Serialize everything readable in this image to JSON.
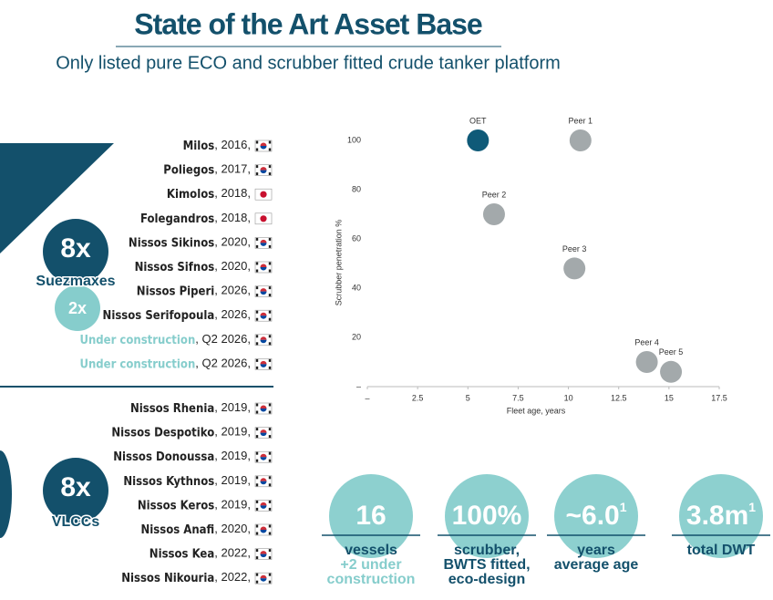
{
  "header": {
    "title": "State of the Art Asset Base",
    "subtitle": "Only listed pure ECO and scrubber fitted crude tanker platform"
  },
  "fleet": [
    {
      "count": "8x",
      "label": "Suezmaxes",
      "extra": "2x",
      "vessels": [
        {
          "name": "Milos",
          "detail": ", 2016,",
          "flag": "kr"
        },
        {
          "name": "Poliegos",
          "detail": ", 2017,",
          "flag": "kr"
        },
        {
          "name": "Kimolos",
          "detail": ", 2018,",
          "flag": "jp"
        },
        {
          "name": "Folegandros",
          "detail": ", 2018,",
          "flag": "jp"
        },
        {
          "name": "Nissos Sikinos",
          "detail": ", 2020,",
          "flag": "kr"
        },
        {
          "name": "Nissos Sifnos",
          "detail": ", 2020,",
          "flag": "kr"
        },
        {
          "name": "Nissos Piperi",
          "detail": ", 2026,",
          "flag": "kr"
        },
        {
          "name": "Nissos Serifopoula",
          "detail": ", 2026,",
          "flag": "kr"
        },
        {
          "name": "Under construction",
          "detail": ", Q2 2026,",
          "flag": "kr",
          "pending": true
        },
        {
          "name": "Under construction",
          "detail": ", Q2 2026,",
          "flag": "kr",
          "pending": true
        }
      ]
    },
    {
      "count": "8x",
      "label": "VLCCs",
      "vessels": [
        {
          "name": "Nissos Rhenia",
          "detail": ", 2019,",
          "flag": "kr"
        },
        {
          "name": "Nissos Despotiko",
          "detail": ", 2019,",
          "flag": "kr"
        },
        {
          "name": "Nissos Donoussa",
          "detail": ", 2019,",
          "flag": "kr"
        },
        {
          "name": "Nissos Kythnos",
          "detail": ", 2019,",
          "flag": "kr"
        },
        {
          "name": "Nissos Keros",
          "detail": ", 2019,",
          "flag": "kr"
        },
        {
          "name": "Nissos Anafi",
          "detail": ", 2020,",
          "flag": "kr"
        },
        {
          "name": "Nissos Kea",
          "detail": ", 2022,",
          "flag": "kr"
        },
        {
          "name": "Nissos Nikouria",
          "detail": ", 2022,",
          "flag": "kr"
        }
      ]
    }
  ],
  "chart_data": {
    "type": "scatter",
    "x_label": "Fleet age, years",
    "y_label": "Scrubber penetration %",
    "labels": [
      "OET",
      "Peer 1",
      "Peer 2",
      "Peer 3",
      "Peer 4",
      "Peer 5"
    ],
    "x": [
      5.5,
      10.6,
      6.3,
      10.3,
      13.9,
      15.1
    ],
    "y": [
      100,
      100,
      70,
      48,
      10,
      6
    ],
    "colors": [
      "#0f5a78",
      "#a3a9ab",
      "#a3a9ab",
      "#a3a9ab",
      "#a3a9ab",
      "#a3a9ab"
    ],
    "xlim": [
      0,
      17.5
    ],
    "ylim": [
      0,
      110
    ],
    "xticks": [
      {
        "value": 0,
        "label": "–"
      },
      2.5,
      5,
      7.5,
      10,
      12.5,
      15,
      17.5
    ],
    "yticks": [
      {
        "value": 0,
        "label": "–"
      },
      20,
      40,
      60,
      80,
      100
    ]
  },
  "stats": [
    {
      "value": "16",
      "lines": [
        "vessels"
      ],
      "note": [
        "+2 under",
        "construction"
      ]
    },
    {
      "value": "100%",
      "lines": [
        "scrubber,",
        "BWTS fitted,",
        "eco-design"
      ]
    },
    {
      "value": "~6.0",
      "sup": "1",
      "lines": [
        "years",
        "average age"
      ]
    },
    {
      "value": "3.8m",
      "sup": "1",
      "lines": [
        "total DWT"
      ]
    }
  ]
}
